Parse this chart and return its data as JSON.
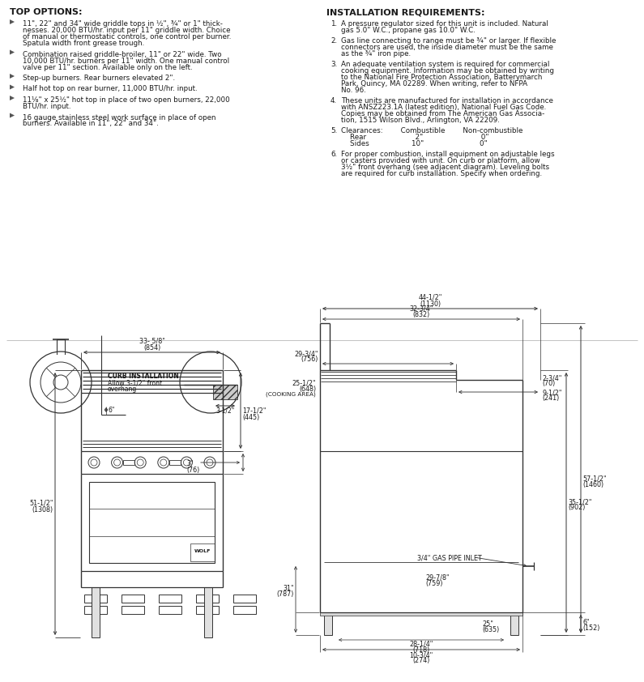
{
  "bg_color": "#ffffff",
  "text_color": "#1a1a1a",
  "line_color": "#333333",
  "top_options_title": "TOP OPTIONS:",
  "top_options_items": [
    "11\", 22\" and 34\" wide griddle tops in ½\", ¾\" or 1\" thick-\nnesses. 20,000 BTU/hr. input per 11\" griddle width. Choice\nof manual or thermostatic controls, one control per burner.\nSpatula width front grease trough.",
    "Combination raised griddle-broiler, 11\" or 22\" wide. Two\n10,000 BTU/hr. burners per 11\" width. One manual control\nvalve per 11\" section. Available only on the left.",
    "Step-up burners. Rear burners elevated 2\".",
    "Half hot top on rear burner, 11,000 BTU/hr. input.",
    "11⅛\" x 25½\" hot top in place of two open burners, 22,000\nBTU/hr. input.",
    "16 gauge stainless steel work surface in place of open\nburners. Available in 11\", 22\" and 34\"."
  ],
  "install_title": "INSTALLATION REQUIREMENTS:",
  "install_items": [
    "A pressure regulator sized for this unit is included. Natural\ngas 5.0\" W.C., propane gas 10.0\" W.C.",
    "Gas line connecting to range must be ¾\" or larger. If flexible\nconnectors are used, the inside diameter must be the same\nas the ¾\" iron pipe.",
    "An adequate ventilation system is required for commercial\ncooking equipment. Information may be obtained by writing\nto the National Fire Protection Association, Batterymarch\nPark, Quincy, MA 02289. When writing, refer to NFPA\nNo. 96.",
    "These units are manufactured for installation in accordance\nwith ANSZ223.1A (latest edition), National Fuel Gas Code.\nCopies may be obtained from The American Gas Associa-\ntion, 1515 Wilson Blvd., Arlington, VA 22209.",
    "Clearances:        Combustible        Non-combustible\n    Rear                      2\"                          0\"\n    Sides                   10\"                         0\"",
    "For proper combustion, install equipment on adjustable legs\nor casters provided with unit. On curb or platform, allow\n3½\" front overhang (see adjacent diagram). Leveling bolts\nare required for curb installation. Specify when ordering."
  ],
  "front_dims": {
    "width_label": "33- 5/8\"",
    "width_mm": "(854)",
    "height_label": "51-1/2\"",
    "height_mm": "(1308)",
    "upper_height_label": "17-1/2\"",
    "upper_height_mm": "(445)",
    "depth_label": "3\"",
    "depth_mm": "(76)"
  },
  "side_dims": {
    "total_width_label": "44-1/2\"",
    "total_width_mm": "(1130)",
    "w2_label": "32-3/4\"",
    "w2_mm": "(832)",
    "w3_label": "9-1/2\"",
    "w3_mm": "(241)",
    "d1_label": "29-3/4\"",
    "d1_mm": "(756)",
    "d2_label": "25-1/2\"",
    "d2_mm": "(648)",
    "d2_sub": "(COOKING AREA)",
    "d3_label": "2-3/4\"",
    "d3_mm": "(70)",
    "height_label": "57-1/2\"",
    "height_mm": "(1460)",
    "h2_label": "35-1/2\"",
    "h2_mm": "(902)",
    "floor_label": "6\"",
    "floor_mm": "(152)",
    "gas_label": "3/4\" GAS PIPE INLET",
    "gas_h_label": "29-7/8\"",
    "gas_h_mm": "(759)",
    "w4_label": "28-1/4\"",
    "w4_mm": "(718)",
    "w5_label": "25\"",
    "w5_mm": "(635)",
    "base_label": "31\"",
    "base_mm": "(787)",
    "foot_label": "10-3/4\"",
    "foot_mm": "(274)"
  },
  "font_size_body": 6.3,
  "font_size_title": 8.0,
  "font_size_dim": 5.8
}
